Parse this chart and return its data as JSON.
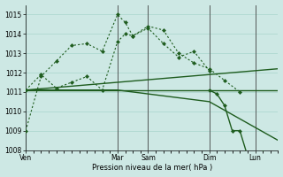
{
  "bg_color": "#cde8e4",
  "grid_color": "#b0d8d0",
  "line_color": "#1e5c1e",
  "title": "Pression niveau de la mer( hPa )",
  "ylim": [
    1008.0,
    1015.5
  ],
  "yticks": [
    1008,
    1009,
    1010,
    1011,
    1012,
    1013,
    1014,
    1015
  ],
  "day_labels": [
    "Ven",
    "Mar",
    "Sam",
    "Dim",
    "Lun"
  ],
  "day_x": [
    0,
    12,
    16,
    24,
    30
  ],
  "xlim": [
    0,
    33
  ],
  "vlines_color": "#555555",
  "series": [
    {
      "x": [
        0,
        2,
        4,
        6,
        8,
        10,
        12,
        13,
        14,
        16,
        18,
        20,
        22,
        24,
        26,
        28
      ],
      "y": [
        1009.0,
        1011.8,
        1012.6,
        1013.4,
        1013.5,
        1013.1,
        1015.0,
        1014.6,
        1013.9,
        1014.4,
        1014.2,
        1013.0,
        1012.5,
        1012.2,
        1011.6,
        1011.0
      ],
      "dotted": true,
      "marker": true
    },
    {
      "x": [
        0,
        2,
        4,
        6,
        8,
        10,
        12,
        13,
        14,
        16,
        18,
        20,
        22,
        24
      ],
      "y": [
        1011.1,
        1011.9,
        1011.2,
        1011.5,
        1011.8,
        1011.1,
        1013.6,
        1014.0,
        1013.9,
        1014.3,
        1013.5,
        1012.8,
        1013.1,
        1012.1
      ],
      "dotted": true,
      "marker": true
    },
    {
      "x": [
        0,
        33
      ],
      "y": [
        1011.1,
        1011.1
      ],
      "dotted": false,
      "marker": false
    },
    {
      "x": [
        0,
        33
      ],
      "y": [
        1011.1,
        1012.2
      ],
      "dotted": false,
      "marker": false
    },
    {
      "x": [
        0,
        12,
        24,
        33
      ],
      "y": [
        1011.1,
        1011.1,
        1010.5,
        1008.5
      ],
      "dotted": false,
      "marker": false
    },
    {
      "x": [
        24,
        25,
        26,
        27,
        28,
        29,
        30,
        31,
        32,
        33
      ],
      "y": [
        1011.1,
        1010.9,
        1010.3,
        1009.0,
        1009.0,
        1007.7,
        1007.6,
        1007.9,
        1007.6,
        1007.5
      ],
      "dotted": false,
      "marker": true
    }
  ],
  "vlines": [
    12,
    16,
    24,
    30
  ]
}
